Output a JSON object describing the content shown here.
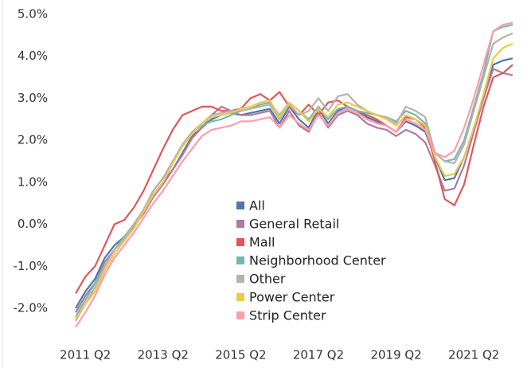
{
  "chart_data": {
    "type": "line",
    "categories": [
      null,
      "2011 Q2",
      null,
      null,
      null,
      null,
      null,
      null,
      null,
      "2013 Q2",
      null,
      null,
      null,
      null,
      null,
      null,
      null,
      "2015 Q2",
      null,
      null,
      null,
      null,
      null,
      null,
      null,
      "2017 Q2",
      null,
      null,
      null,
      null,
      null,
      null,
      null,
      "2019 Q2",
      null,
      null,
      null,
      null,
      null,
      null,
      null,
      "2021 Q2",
      null,
      null,
      null,
      null
    ],
    "ylim": [
      -2.6,
      5.1
    ],
    "yticks": [
      {
        "value": -2,
        "label": "-2.0%"
      },
      {
        "value": -1,
        "label": "-1.0%"
      },
      {
        "value": 0,
        "label": "0.0%"
      },
      {
        "value": 1,
        "label": "1.0%"
      },
      {
        "value": 2,
        "label": "2.0%"
      },
      {
        "value": 3,
        "label": "3.0%"
      },
      {
        "value": 4,
        "label": "4.0%"
      },
      {
        "value": 5,
        "label": "5.0%"
      }
    ],
    "grid": false,
    "legend": "center",
    "series": [
      {
        "name": "All",
        "color": "#4e79a7",
        "values": [
          -2.0,
          -1.6,
          -1.3,
          -0.8,
          -0.5,
          -0.3,
          0.0,
          0.3,
          0.7,
          1.0,
          1.3,
          1.7,
          2.1,
          2.3,
          2.5,
          2.6,
          2.65,
          2.6,
          2.65,
          2.7,
          2.75,
          2.4,
          2.8,
          2.5,
          2.3,
          2.75,
          2.4,
          2.7,
          2.8,
          2.7,
          2.55,
          2.45,
          2.35,
          2.2,
          2.45,
          2.35,
          2.2,
          1.6,
          1.05,
          1.1,
          1.6,
          2.3,
          3.0,
          3.8,
          3.9,
          3.95
        ]
      },
      {
        "name": "General Retail",
        "color": "#b07aa1",
        "values": [
          -2.1,
          -1.7,
          -1.4,
          -0.9,
          -0.6,
          -0.35,
          -0.05,
          0.25,
          0.65,
          0.95,
          1.3,
          1.65,
          2.05,
          2.3,
          2.6,
          2.8,
          2.7,
          2.6,
          2.6,
          2.65,
          2.7,
          2.3,
          2.7,
          2.35,
          2.2,
          2.65,
          2.3,
          2.6,
          2.7,
          2.6,
          2.4,
          2.3,
          2.25,
          2.1,
          2.25,
          2.15,
          1.95,
          1.4,
          0.8,
          0.85,
          1.4,
          2.2,
          3.0,
          3.7,
          3.6,
          3.55
        ]
      },
      {
        "name": "Mall",
        "color": "#e15759",
        "values": [
          -1.65,
          -1.25,
          -1.0,
          -0.5,
          0.0,
          0.1,
          0.4,
          0.8,
          1.3,
          1.8,
          2.25,
          2.6,
          2.7,
          2.8,
          2.8,
          2.7,
          2.7,
          2.75,
          3.0,
          3.1,
          2.95,
          3.15,
          2.8,
          2.6,
          2.85,
          2.6,
          2.9,
          2.95,
          2.8,
          2.7,
          2.6,
          2.5,
          2.35,
          2.2,
          2.55,
          2.5,
          2.3,
          1.5,
          0.6,
          0.45,
          0.95,
          1.9,
          2.8,
          3.5,
          3.6,
          3.8
        ]
      },
      {
        "name": "Neighborhood Center",
        "color": "#76b7b2",
        "values": [
          -2.2,
          -1.8,
          -1.4,
          -1.0,
          -0.6,
          -0.3,
          0.0,
          0.35,
          0.8,
          1.1,
          1.5,
          1.9,
          2.2,
          2.35,
          2.45,
          2.5,
          2.6,
          2.7,
          2.75,
          2.85,
          2.9,
          2.6,
          2.9,
          2.7,
          2.5,
          2.8,
          2.5,
          2.75,
          2.8,
          2.7,
          2.65,
          2.6,
          2.55,
          2.45,
          2.7,
          2.6,
          2.4,
          1.7,
          1.5,
          1.55,
          2.0,
          2.8,
          3.6,
          4.6,
          4.7,
          4.75
        ]
      },
      {
        "name": "Other",
        "color": "#bab0ac",
        "values": [
          -2.3,
          -1.9,
          -1.5,
          -1.0,
          -0.6,
          -0.35,
          0.0,
          0.35,
          0.8,
          1.1,
          1.5,
          1.9,
          2.2,
          2.4,
          2.6,
          2.65,
          2.7,
          2.7,
          2.75,
          2.8,
          2.85,
          2.5,
          2.85,
          2.6,
          2.7,
          3.0,
          2.7,
          3.05,
          3.1,
          2.85,
          2.7,
          2.6,
          2.55,
          2.4,
          2.8,
          2.7,
          2.55,
          1.7,
          1.5,
          1.45,
          1.9,
          2.7,
          3.5,
          4.3,
          4.45,
          4.55
        ]
      },
      {
        "name": "Power Center",
        "color": "#edc948",
        "values": [
          -2.25,
          -1.9,
          -1.6,
          -1.1,
          -0.7,
          -0.4,
          -0.1,
          0.3,
          0.7,
          1.0,
          1.45,
          1.85,
          2.15,
          2.4,
          2.55,
          2.6,
          2.65,
          2.75,
          2.8,
          2.9,
          2.95,
          2.55,
          2.9,
          2.7,
          2.45,
          2.75,
          2.55,
          2.85,
          2.9,
          2.8,
          2.7,
          2.6,
          2.5,
          2.35,
          2.6,
          2.5,
          2.35,
          1.6,
          1.15,
          1.2,
          1.6,
          2.3,
          3.1,
          3.95,
          4.2,
          4.3
        ]
      },
      {
        "name": "Strip Center",
        "color": "#ff9da7",
        "values": [
          -2.45,
          -2.1,
          -1.7,
          -1.2,
          -0.8,
          -0.5,
          -0.2,
          0.15,
          0.5,
          0.8,
          1.15,
          1.5,
          1.8,
          2.1,
          2.25,
          2.3,
          2.35,
          2.45,
          2.45,
          2.5,
          2.55,
          2.3,
          2.6,
          2.4,
          2.25,
          2.6,
          2.35,
          2.65,
          2.75,
          2.65,
          2.5,
          2.4,
          2.35,
          2.2,
          2.5,
          2.4,
          2.25,
          1.7,
          1.6,
          1.75,
          2.3,
          3.0,
          3.8,
          4.6,
          4.75,
          4.8
        ]
      }
    ]
  }
}
